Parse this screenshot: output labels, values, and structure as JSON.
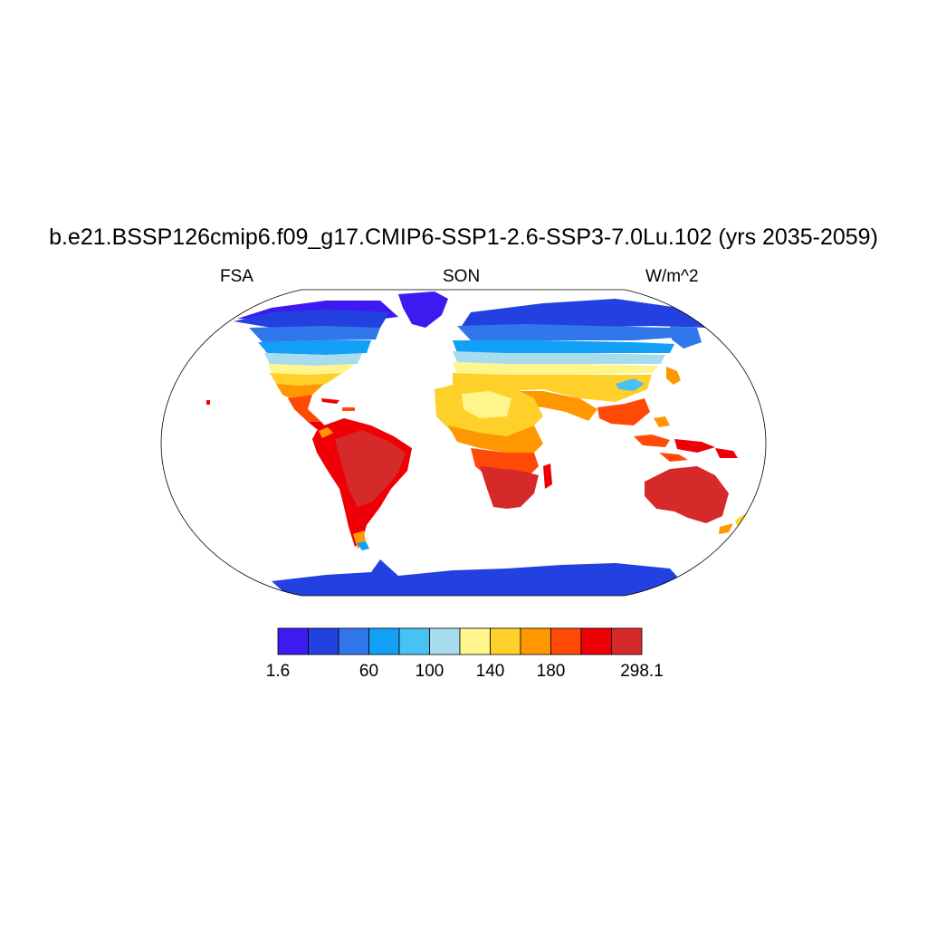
{
  "title": "b.e21.BSSP126cmip6.f09_g17.CMIP6-SSP1-2.6-SSP3-7.0Lu.102 (yrs 2035-2059)",
  "left_string": "FSA",
  "center_string": "SON",
  "right_string": "W/m^2",
  "colorbar": {
    "colors": [
      "#3d1bf0",
      "#2341e0",
      "#3177eb",
      "#12a0f7",
      "#47c2f5",
      "#a8dbee",
      "#fef68c",
      "#ffd02a",
      "#ff9800",
      "#ff4a07",
      "#ee0006",
      "#d62a2a"
    ],
    "labels": [
      "1.6",
      "60",
      "100",
      "140",
      "180",
      "298.1"
    ],
    "label_boundary_index": [
      0,
      3,
      5,
      7,
      9,
      12
    ]
  }
}
